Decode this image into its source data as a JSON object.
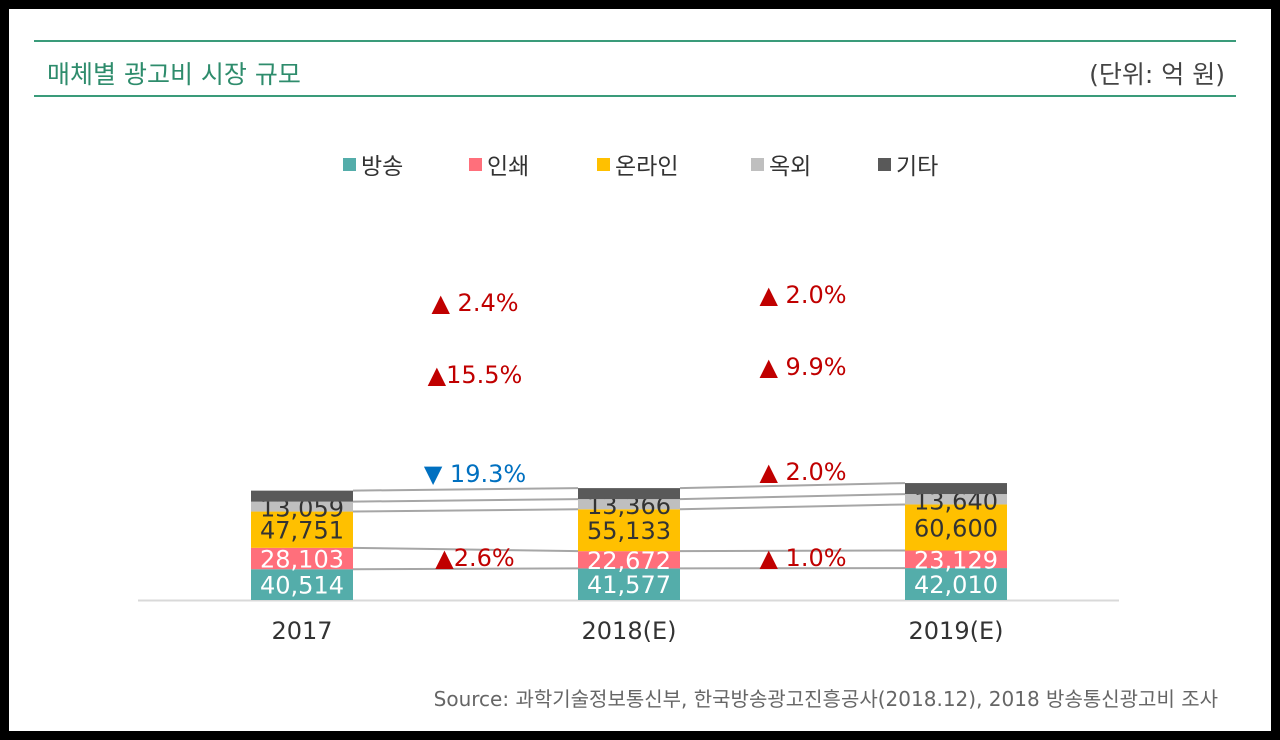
{
  "header": {
    "title": "매체별 광고비 시장 규모",
    "unit": "(단위: 억 원)"
  },
  "source": "Source: 과학기술정보통신부, 한국방송광고진흥공사(2018.12),  2018 방송통신광고비 조사",
  "colors": {
    "방송": "#54ADAA",
    "인쇄": "#FF6F7B",
    "온라인": "#FFC000",
    "옥외": "#BFBFBF",
    "기타": "#595959",
    "up": "#C00000",
    "down": "#0070C0"
  },
  "chart_data": {
    "type": "bar",
    "stacked": true,
    "categories": [
      "2017",
      "2018(E)",
      "2019(E)"
    ],
    "series": [
      {
        "name": "방송",
        "values": [
          40514,
          41577,
          42010
        ],
        "labels": [
          "40,514",
          "41,577",
          "42,010"
        ]
      },
      {
        "name": "인쇄",
        "values": [
          28103,
          22672,
          23129
        ],
        "labels": [
          "28,103",
          "22,672",
          "23,129"
        ]
      },
      {
        "name": "온라인",
        "values": [
          47751,
          55133,
          60600
        ],
        "labels": [
          "47,751",
          "55,133",
          "60,600"
        ]
      },
      {
        "name": "옥외",
        "values": [
          13059,
          13366,
          13640
        ],
        "labels": [
          "13,059",
          "13,366",
          "13,640"
        ]
      },
      {
        "name": "기타",
        "values": [
          null,
          null,
          null
        ],
        "labels": [
          "",
          "",
          ""
        ]
      }
    ],
    "growth": [
      {
        "series": "옥외",
        "changes": [
          {
            "dir": "up",
            "text": " 2.4%"
          },
          {
            "dir": "up",
            "text": " 2.0%"
          }
        ]
      },
      {
        "series": "온라인",
        "changes": [
          {
            "dir": "up",
            "text": "15.5%"
          },
          {
            "dir": "up",
            "text": " 9.9%"
          }
        ]
      },
      {
        "series": "인쇄",
        "changes": [
          {
            "dir": "down",
            "text": " 19.3%"
          },
          {
            "dir": "up",
            "text": " 2.0%"
          }
        ]
      },
      {
        "series": "방송",
        "changes": [
          {
            "dir": "up",
            "text": "2.6%"
          },
          {
            "dir": "up",
            "text": " 1.0%"
          }
        ]
      }
    ],
    "legend_position": "top",
    "grid": false
  }
}
